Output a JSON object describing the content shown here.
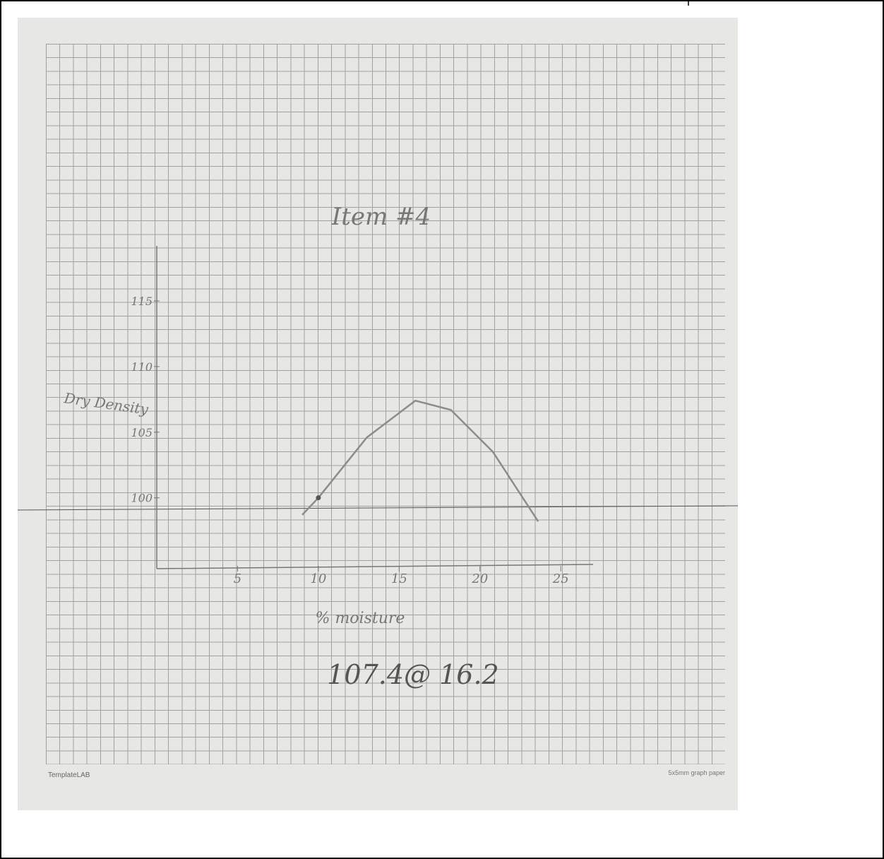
{
  "chart_data": {
    "type": "line",
    "title": "Item #4",
    "x_label": "% moisture",
    "y_label": "Dry Density",
    "annotation": "107.4@ 16.2",
    "footer_left": "TemplateLAB",
    "footer_right": "5x5mm graph paper",
    "x": [
      9,
      10,
      13,
      16,
      18.2,
      20.8,
      23.6
    ],
    "values": [
      98.7,
      100,
      104.6,
      107.4,
      106.7,
      103.5,
      98.2
    ],
    "color": "#8c8c8c",
    "xlim": [
      0,
      27
    ],
    "xticks": [
      5,
      10,
      15,
      20,
      25
    ],
    "ylim": [
      94.6,
      119.2
    ],
    "yticks": [
      100,
      105,
      110,
      115
    ]
  }
}
